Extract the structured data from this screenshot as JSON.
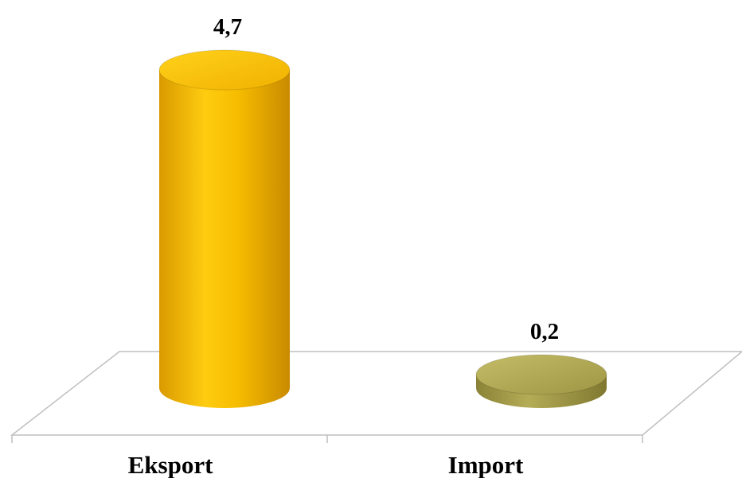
{
  "chart_data": {
    "type": "bar",
    "categories": [
      "Eksport",
      "Import"
    ],
    "values": [
      4.7,
      0.2
    ],
    "data_labels": [
      "4,7",
      "0,2"
    ],
    "colors": [
      "#f2b400",
      "#a8a048"
    ],
    "title": "",
    "xlabel": "",
    "ylabel": "",
    "ylim": [
      0,
      4.7
    ],
    "grid": false,
    "legend": "none"
  }
}
